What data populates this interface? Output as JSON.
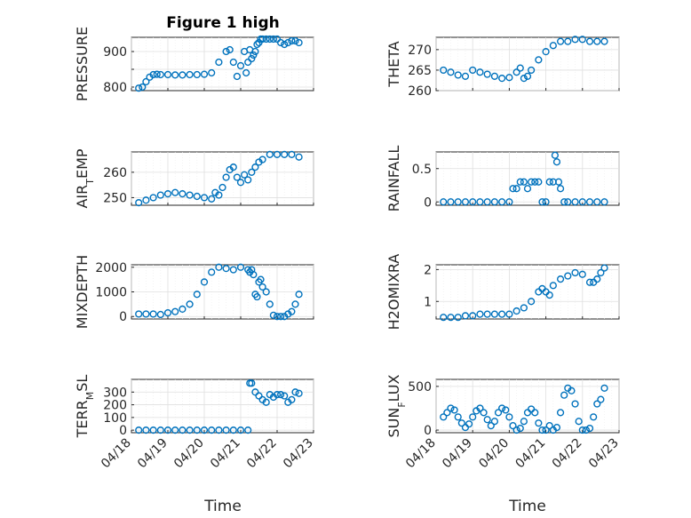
{
  "figure": {
    "title": "Figure 1 high",
    "xlabel": "Time"
  },
  "colors": {
    "series": "#0072BD",
    "axes": "#262626",
    "grid": "#dfdfdf"
  },
  "chart_data": [
    {
      "type": "scatter",
      "ylabel": "PRESSURE",
      "ylim": [
        790,
        940
      ],
      "yticks": [
        800,
        850,
        900
      ],
      "ytick_labels": [
        "800",
        "",
        "900"
      ],
      "grid": true,
      "series": [
        {
          "x": [
            0.0,
            0.1,
            0.2,
            0.3,
            0.4,
            0.5,
            0.6,
            0.8,
            1.0,
            1.2,
            1.4,
            1.6,
            1.8,
            2.0,
            2.2,
            2.4,
            2.5,
            2.6,
            2.7,
            2.8,
            2.9,
            2.95,
            3.0,
            3.05,
            3.1,
            3.15,
            3.2,
            3.25,
            3.3,
            3.35,
            3.4,
            3.5,
            3.6,
            3.7,
            3.8,
            3.9,
            4.0,
            4.1,
            4.2,
            4.3,
            4.4
          ],
          "y": [
            797,
            800,
            815,
            828,
            835,
            836,
            835,
            835,
            834,
            834,
            835,
            835,
            836,
            840,
            870,
            900,
            905,
            870,
            830,
            860,
            900,
            840,
            870,
            905,
            880,
            890,
            900,
            920,
            925,
            935,
            935,
            935,
            935,
            935,
            935,
            925,
            920,
            925,
            930,
            930,
            925
          ]
        }
      ]
    },
    {
      "type": "scatter",
      "ylabel": "THETA",
      "ylim": [
        260,
        273
      ],
      "yticks": [
        260,
        265,
        270
      ],
      "ytick_labels": [
        "260",
        "265",
        "270"
      ],
      "grid": true,
      "series": [
        {
          "x": [
            0.0,
            0.2,
            0.4,
            0.6,
            0.8,
            1.0,
            1.2,
            1.4,
            1.6,
            1.8,
            2.0,
            2.1,
            2.2,
            2.3,
            2.4,
            2.6,
            2.8,
            3.0,
            3.2,
            3.4,
            3.6,
            3.8,
            4.0,
            4.2,
            4.4
          ],
          "y": [
            265,
            264.5,
            263.8,
            263.5,
            265,
            264.5,
            264,
            263.5,
            263,
            263.2,
            264.5,
            265.5,
            263,
            263.5,
            265,
            267.5,
            269.5,
            271,
            272,
            272,
            272.5,
            272.5,
            272,
            272,
            272
          ]
        }
      ]
    },
    {
      "type": "scatter",
      "ylabel": "AIR_TEMP",
      "ylim": [
        247,
        268
      ],
      "yticks": [
        250,
        260
      ],
      "ytick_labels": [
        "250",
        "260"
      ],
      "grid": true,
      "series": [
        {
          "x": [
            0.0,
            0.2,
            0.4,
            0.6,
            0.8,
            1.0,
            1.2,
            1.4,
            1.6,
            1.8,
            2.0,
            2.1,
            2.2,
            2.3,
            2.4,
            2.5,
            2.6,
            2.7,
            2.8,
            2.9,
            3.0,
            3.1,
            3.2,
            3.3,
            3.4,
            3.6,
            3.8,
            4.0,
            4.2,
            4.4
          ],
          "y": [
            248,
            249,
            250,
            251,
            251.5,
            252,
            251.5,
            251,
            250.5,
            250,
            249.5,
            252,
            251,
            254,
            258,
            261,
            262,
            258,
            256,
            259,
            257,
            260,
            262,
            264,
            265,
            267,
            267,
            267,
            267,
            266
          ]
        }
      ]
    },
    {
      "type": "scatter",
      "ylabel": "RAINFALL",
      "ylim": [
        -0.05,
        0.75
      ],
      "yticks": [
        0,
        0.5
      ],
      "ytick_labels": [
        "0",
        "0.5"
      ],
      "grid": true,
      "series": [
        {
          "x": [
            0.0,
            0.2,
            0.4,
            0.6,
            0.8,
            1.0,
            1.2,
            1.4,
            1.6,
            1.8,
            1.9,
            2.0,
            2.1,
            2.2,
            2.3,
            2.4,
            2.5,
            2.6,
            2.7,
            2.8,
            2.9,
            3.0,
            3.05,
            3.1,
            3.15,
            3.2,
            3.3,
            3.4,
            3.6,
            3.8,
            4.0,
            4.2,
            4.4
          ],
          "y": [
            0,
            0,
            0,
            0,
            0,
            0,
            0,
            0,
            0,
            0,
            0.2,
            0.2,
            0.3,
            0.3,
            0.2,
            0.3,
            0.3,
            0.3,
            0,
            0,
            0.3,
            0.3,
            0.7,
            0.6,
            0.3,
            0.2,
            0,
            0,
            0,
            0,
            0,
            0,
            0
          ]
        }
      ]
    },
    {
      "type": "scatter",
      "ylabel": "MIXDEPTH",
      "ylim": [
        -100,
        2100
      ],
      "yticks": [
        0,
        1000,
        2000
      ],
      "ytick_labels": [
        "0",
        "1000",
        "2000"
      ],
      "grid": true,
      "series": [
        {
          "x": [
            0.0,
            0.2,
            0.4,
            0.6,
            0.8,
            1.0,
            1.2,
            1.4,
            1.6,
            1.8,
            2.0,
            2.2,
            2.4,
            2.6,
            2.8,
            3.0,
            3.05,
            3.1,
            3.15,
            3.2,
            3.25,
            3.3,
            3.35,
            3.4,
            3.5,
            3.6,
            3.7,
            3.8,
            3.9,
            4.0,
            4.1,
            4.2,
            4.3,
            4.4
          ],
          "y": [
            100,
            100,
            100,
            80,
            150,
            200,
            300,
            500,
            900,
            1400,
            1800,
            2000,
            1950,
            1900,
            2000,
            1900,
            1800,
            1900,
            1700,
            900,
            800,
            1400,
            1500,
            1200,
            1000,
            500,
            50,
            0,
            0,
            0,
            100,
            200,
            500,
            900
          ]
        }
      ]
    },
    {
      "type": "scatter",
      "ylabel": "H2OMIXRA",
      "ylim": [
        0.45,
        2.15
      ],
      "yticks": [
        1,
        2
      ],
      "ytick_labels": [
        "1",
        "2"
      ],
      "grid": true,
      "series": [
        {
          "x": [
            0.0,
            0.2,
            0.4,
            0.6,
            0.8,
            1.0,
            1.2,
            1.4,
            1.6,
            1.8,
            2.0,
            2.2,
            2.4,
            2.6,
            2.7,
            2.8,
            2.9,
            3.0,
            3.2,
            3.4,
            3.6,
            3.8,
            4.0,
            4.1,
            4.2,
            4.3,
            4.4
          ],
          "y": [
            0.5,
            0.5,
            0.5,
            0.55,
            0.55,
            0.6,
            0.6,
            0.6,
            0.6,
            0.6,
            0.7,
            0.8,
            1.0,
            1.3,
            1.4,
            1.3,
            1.2,
            1.5,
            1.7,
            1.8,
            1.9,
            1.85,
            1.6,
            1.6,
            1.7,
            1.9,
            2.05
          ]
        }
      ]
    },
    {
      "type": "scatter",
      "ylabel": "TERR_MSL",
      "ylim": [
        -20,
        400
      ],
      "yticks": [
        0,
        100,
        200,
        300
      ],
      "ytick_labels": [
        "0",
        "100",
        "200",
        "300"
      ],
      "grid": true,
      "series": [
        {
          "x": [
            0.0,
            0.2,
            0.4,
            0.6,
            0.8,
            1.0,
            1.2,
            1.4,
            1.6,
            1.8,
            2.0,
            2.2,
            2.4,
            2.6,
            2.8,
            3.0,
            3.05,
            3.1,
            3.2,
            3.3,
            3.4,
            3.5,
            3.6,
            3.7,
            3.8,
            3.9,
            4.0,
            4.1,
            4.2,
            4.3,
            4.4
          ],
          "y": [
            0,
            0,
            0,
            0,
            0,
            0,
            0,
            0,
            0,
            0,
            0,
            0,
            0,
            0,
            0,
            0,
            370,
            370,
            300,
            270,
            240,
            220,
            280,
            260,
            280,
            280,
            270,
            220,
            240,
            300,
            290
          ]
        }
      ]
    },
    {
      "type": "scatter",
      "ylabel": "SUN_FLUX",
      "ylim": [
        -30,
        580
      ],
      "yticks": [
        0,
        500
      ],
      "ytick_labels": [
        "0",
        "500"
      ],
      "grid": true,
      "series": [
        {
          "x": [
            0.0,
            0.1,
            0.2,
            0.3,
            0.4,
            0.5,
            0.6,
            0.7,
            0.8,
            0.9,
            1.0,
            1.1,
            1.2,
            1.3,
            1.4,
            1.5,
            1.6,
            1.7,
            1.8,
            1.9,
            2.0,
            2.1,
            2.2,
            2.3,
            2.4,
            2.5,
            2.6,
            2.7,
            2.8,
            2.9,
            3.0,
            3.1,
            3.2,
            3.3,
            3.4,
            3.5,
            3.6,
            3.7,
            3.8,
            3.9,
            4.0,
            4.1,
            4.2,
            4.3,
            4.4
          ],
          "y": [
            150,
            200,
            250,
            230,
            150,
            80,
            30,
            70,
            150,
            220,
            250,
            200,
            120,
            50,
            100,
            200,
            250,
            230,
            150,
            50,
            0,
            20,
            100,
            200,
            240,
            200,
            80,
            0,
            0,
            50,
            0,
            30,
            200,
            400,
            480,
            450,
            300,
            100,
            0,
            0,
            20,
            150,
            300,
            350,
            480
          ]
        }
      ]
    }
  ],
  "x_axis": {
    "range": [
      0,
      5
    ],
    "ticks": [
      0,
      1,
      2,
      3,
      4,
      5
    ],
    "tick_labels": [
      "04/18",
      "04/19",
      "04/20",
      "04/21",
      "04/22",
      "04/23"
    ]
  }
}
